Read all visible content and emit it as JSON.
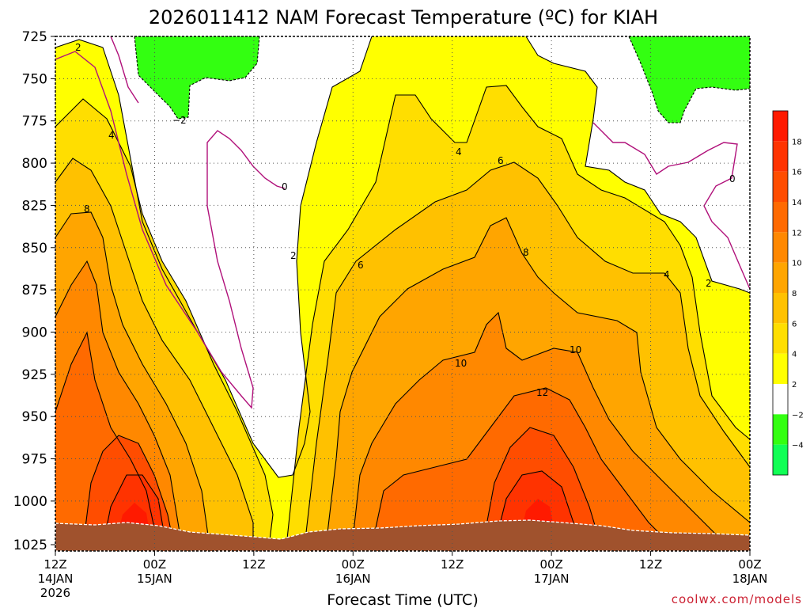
{
  "chart_data": {
    "type": "heatmap",
    "title": "2026011412 NAM Forecast Temperature (ºC) for KIAH",
    "xlabel": "Forecast Time (UTC)",
    "ylabel": "",
    "y_axis": {
      "inverted": true,
      "ylim": [
        1025,
        725
      ],
      "ticks": [
        "725",
        "750",
        "775",
        "800",
        "825",
        "850",
        "875",
        "900",
        "925",
        "950",
        "975",
        "1000",
        "1025"
      ]
    },
    "x_axis": {
      "ticks": [
        {
          "line1": "12Z",
          "line2": "14JAN",
          "line3": "2026"
        },
        {
          "line1": "00Z",
          "line2": "15JAN",
          "line3": ""
        },
        {
          "line1": "12Z",
          "line2": "",
          "line3": ""
        },
        {
          "line1": "00Z",
          "line2": "16JAN",
          "line3": ""
        },
        {
          "line1": "12Z",
          "line2": "",
          "line3": ""
        },
        {
          "line1": "00Z",
          "line2": "17JAN",
          "line3": ""
        },
        {
          "line1": "12Z",
          "line2": "",
          "line3": ""
        },
        {
          "line1": "00Z",
          "line2": "18JAN",
          "line3": ""
        }
      ]
    },
    "grid": true,
    "colorbar": {
      "ticks": [
        "18",
        "16",
        "14",
        "12",
        "10",
        "8",
        "6",
        "4",
        "2",
        "−2",
        "−4"
      ],
      "bands": [
        {
          "color": "#ff1a00"
        },
        {
          "color": "#ff3300"
        },
        {
          "color": "#ff4d00"
        },
        {
          "color": "#ff6a00"
        },
        {
          "color": "#ff8800"
        },
        {
          "color": "#ffa500"
        },
        {
          "color": "#ffc100"
        },
        {
          "color": "#ffde00"
        },
        {
          "color": "#ffff00"
        },
        {
          "color": "#ffffff"
        },
        {
          "color": "#33ff11"
        },
        {
          "color": "#11ff55"
        }
      ]
    },
    "contour_labels": [
      "2",
      "−2",
      "4",
      "0",
      "8",
      "2",
      "6",
      "4",
      "6",
      "8",
      "10",
      "10",
      "12",
      "0",
      "4",
      "2"
    ],
    "credit": "coolwx.com/models",
    "colors": {
      "brown_ground": "#a0522d",
      "zero_isotherm": "#b0107a",
      "contour": "#000000"
    }
  }
}
